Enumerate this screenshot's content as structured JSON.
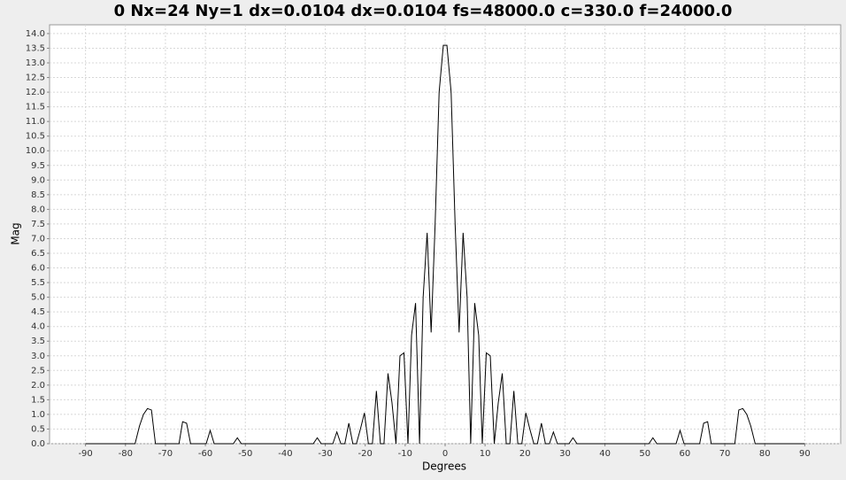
{
  "chart_data": {
    "type": "line",
    "title": "0 Nx=24 Ny=1 dx=0.0104 dx=0.0104 fs=48000.0 c=330.0 f=24000.0",
    "xlabel": "Degrees",
    "ylabel": "Mag",
    "color": "#000000",
    "grid": true,
    "xlim": [
      -99,
      99
    ],
    "ylim": [
      0,
      14.3
    ],
    "xticks": [
      -90,
      -80,
      -70,
      -60,
      -50,
      -40,
      -30,
      -20,
      -10,
      0,
      10,
      20,
      30,
      40,
      50,
      60,
      70,
      80,
      90
    ],
    "yticks": [
      {
        "value": 0,
        "label": "0.0"
      },
      {
        "value": 0.5,
        "label": "0.5"
      },
      {
        "value": 1,
        "label": "1.0"
      },
      {
        "value": 1.5,
        "label": "1.5"
      },
      {
        "value": 2,
        "label": "2.0"
      },
      {
        "value": 2.5,
        "label": "2.5"
      },
      {
        "value": 3,
        "label": "3.0"
      },
      {
        "value": 3.5,
        "label": "3.5"
      },
      {
        "value": 4,
        "label": "4.0"
      },
      {
        "value": 4.5,
        "label": "4.5"
      },
      {
        "value": 5,
        "label": "5.0"
      },
      {
        "value": 5.5,
        "label": "5.5"
      },
      {
        "value": 6,
        "label": "6.0"
      },
      {
        "value": 6.5,
        "label": "6.5"
      },
      {
        "value": 7,
        "label": "7.0"
      },
      {
        "value": 7.5,
        "label": "7.5"
      },
      {
        "value": 8,
        "label": "8.0"
      },
      {
        "value": 8.5,
        "label": "8.5"
      },
      {
        "value": 9,
        "label": "9.0"
      },
      {
        "value": 9.5,
        "label": "9.5"
      },
      {
        "value": 10,
        "label": "10.0"
      },
      {
        "value": 10.5,
        "label": "10.5"
      },
      {
        "value": 11,
        "label": "11.0"
      },
      {
        "value": 11.5,
        "label": "11.5"
      },
      {
        "value": 12,
        "label": "12.0"
      },
      {
        "value": 12.5,
        "label": "12.5"
      },
      {
        "value": 13,
        "label": "13.0"
      },
      {
        "value": 13.5,
        "label": "13.5"
      },
      {
        "value": 14,
        "label": "14.0"
      }
    ],
    "x": [
      -90,
      -77.6,
      -76.5,
      -75.5,
      -74.5,
      -73.5,
      -72.5,
      -66.6,
      -65.7,
      -64.7,
      -63.7,
      -59.8,
      -58.8,
      -57.8,
      -53,
      -52,
      -51,
      -33,
      -32,
      -31,
      -28.1,
      -27.1,
      -26.1,
      -25.1,
      -24.1,
      -23.1,
      -22.2,
      -21.2,
      -20.2,
      -19.2,
      -18.2,
      -17.2,
      -16.2,
      -15.3,
      -14.3,
      -13.3,
      -12.3,
      -11.3,
      -10.3,
      -9.3,
      -8.4,
      -7.4,
      -6.4,
      -5.5,
      -4.5,
      -3.5,
      -2.5,
      -1.5,
      -0.45,
      0.45,
      1.5,
      2.5,
      3.5,
      4.5,
      5.5,
      6.4,
      7.4,
      8.4,
      9.3,
      10.3,
      11.3,
      12.3,
      13.3,
      14.3,
      15.3,
      16.2,
      17.2,
      18.2,
      19.2,
      20.2,
      21.2,
      22.2,
      23.1,
      24.1,
      25.1,
      26.1,
      27.1,
      28.1,
      31,
      32,
      33,
      51,
      52,
      53,
      57.8,
      58.8,
      59.8,
      63.7,
      64.7,
      65.7,
      66.6,
      72.5,
      73.5,
      74.5,
      75.5,
      76.5,
      77.6,
      90
    ],
    "values": [
      0,
      0,
      0.6,
      1.0,
      1.2,
      1.15,
      0,
      0,
      0.75,
      0.7,
      0,
      0,
      0.45,
      0,
      0,
      0.2,
      0,
      0,
      0.2,
      0,
      0,
      0.4,
      0,
      0,
      0.7,
      0,
      0,
      0.5,
      1.05,
      0,
      0,
      1.8,
      0,
      0,
      2.4,
      1.4,
      0,
      3.0,
      3.1,
      0,
      3.7,
      4.8,
      0,
      5.0,
      7.2,
      3.8,
      7.5,
      12.0,
      13.6,
      13.6,
      12.0,
      7.5,
      3.8,
      7.2,
      5.0,
      0,
      4.8,
      3.7,
      0,
      3.1,
      3.0,
      0,
      1.4,
      2.4,
      0,
      0,
      1.8,
      0,
      0,
      1.05,
      0.5,
      0,
      0,
      0.7,
      0,
      0,
      0.4,
      0,
      0,
      0.2,
      0,
      0,
      0.2,
      0,
      0,
      0.45,
      0,
      0,
      0.7,
      0.75,
      0,
      0,
      1.15,
      1.2,
      1.0,
      0.6,
      0,
      0
    ]
  }
}
